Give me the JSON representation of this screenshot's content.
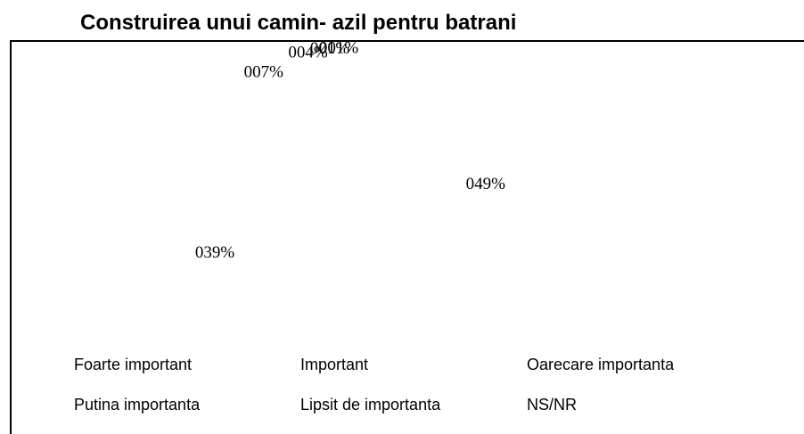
{
  "chart_data": {
    "type": "pie",
    "title": "Construirea unui camin- azil pentru batrani",
    "categories": [
      "Foarte important",
      "Important",
      "Oarecare importanta",
      "Putina importanta",
      "Lipsit de importanta",
      "NS/NR"
    ],
    "values": [
      49,
      39,
      7,
      4,
      1,
      1
    ],
    "value_labels": [
      "049%",
      "039%",
      "007%",
      "004%",
      "001%",
      "001%"
    ],
    "color": "#ffffff",
    "legend": "bottom"
  }
}
